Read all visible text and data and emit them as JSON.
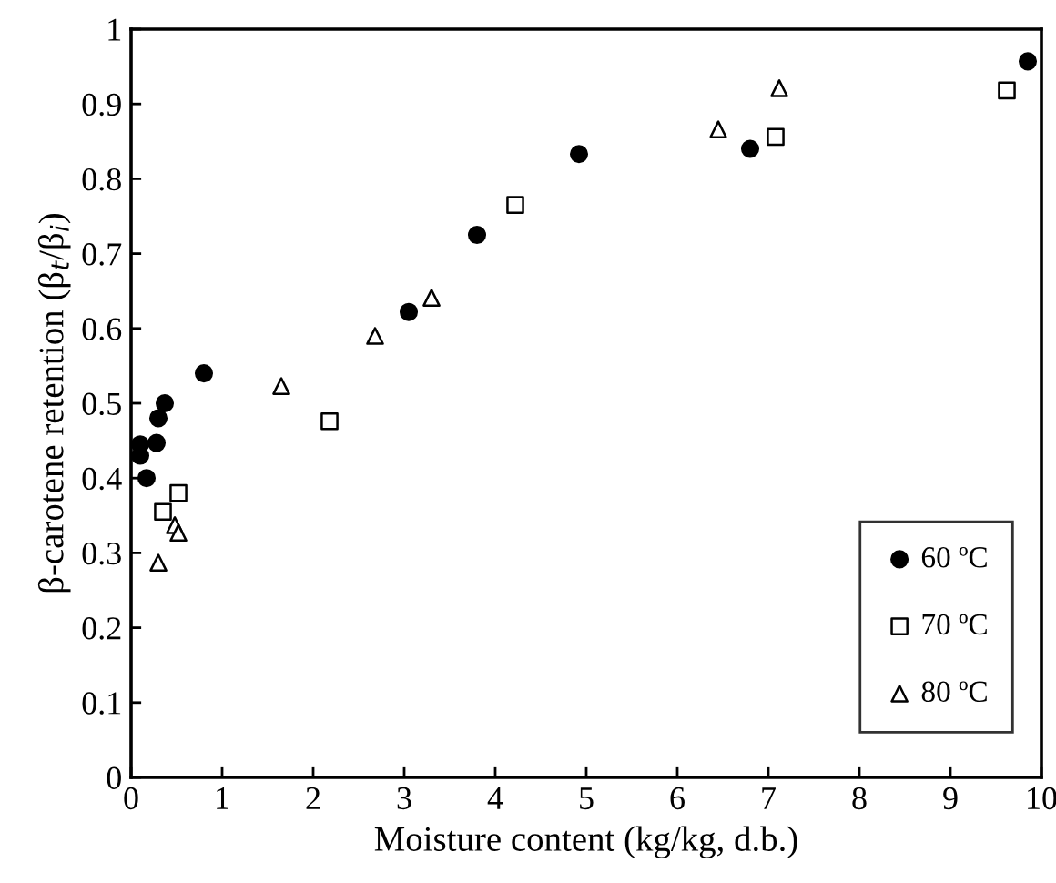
{
  "chart_data": {
    "type": "scatter",
    "xlabel": "Moisture content (kg/kg, d.b.)",
    "ylabel": "β-carotene retention (β$_{t}$/β$_{i}$)",
    "xlim": [
      0,
      10
    ],
    "ylim": [
      0,
      1
    ],
    "xticks": [
      0,
      1,
      2,
      3,
      4,
      5,
      6,
      7,
      8,
      9,
      10
    ],
    "yticks": [
      0,
      0.1,
      0.2,
      0.3,
      0.4,
      0.5,
      0.6,
      0.7,
      0.8,
      0.9,
      1
    ],
    "legend": "bottom right",
    "grid": false,
    "series": [
      {
        "name": "60 ºC",
        "color": "#000000",
        "marker": "circle",
        "x": [
          0.1,
          0.1,
          0.17,
          0.28,
          0.3,
          0.37,
          0.8,
          3.05,
          3.8,
          4.92,
          6.8,
          9.85
        ],
        "values": [
          0.445,
          0.43,
          0.4,
          0.447,
          0.48,
          0.5,
          0.54,
          0.622,
          0.725,
          0.833,
          0.84,
          0.957
        ]
      },
      {
        "name": "70 ºC",
        "color": "#000000",
        "marker": "square",
        "x": [
          0.35,
          0.52,
          2.18,
          4.22,
          7.08,
          9.62
        ],
        "values": [
          0.355,
          0.38,
          0.476,
          0.765,
          0.856,
          0.918
        ]
      },
      {
        "name": "80 ºC",
        "color": "#000000",
        "marker": "triangle",
        "x": [
          0.3,
          0.48,
          0.52,
          1.65,
          2.68,
          3.3,
          6.45,
          7.12
        ],
        "values": [
          0.287,
          0.337,
          0.327,
          0.523,
          0.59,
          0.641,
          0.866,
          0.921
        ]
      }
    ]
  }
}
